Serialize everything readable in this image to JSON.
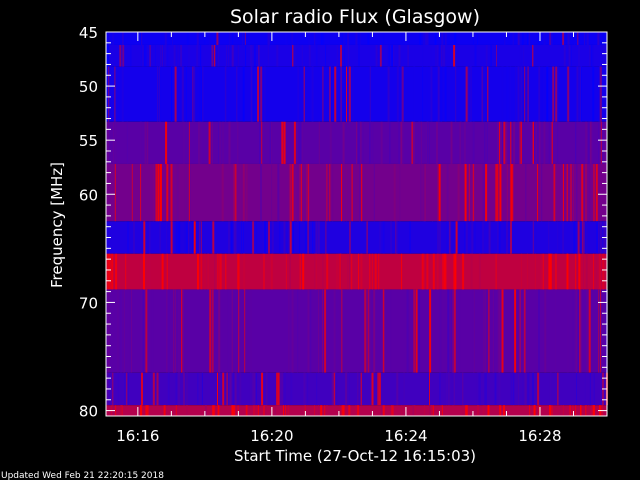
{
  "chart_data": {
    "type": "heatmap",
    "title": "Solar radio Flux (Glasgow)",
    "xlabel": "Start Time (27-Oct-12 16:15:03)",
    "ylabel": "Frequency [MHz]",
    "x_unit": "minutes past 16:00 UTC",
    "x_range": [
      15.05,
      30.0
    ],
    "y_range": [
      45,
      80.5
    ],
    "y_reversed": true,
    "x_ticks": [
      {
        "value": 16,
        "label": "16:16"
      },
      {
        "value": 20,
        "label": "16:20"
      },
      {
        "value": 24,
        "label": "16:24"
      },
      {
        "value": 28,
        "label": "16:28"
      }
    ],
    "y_ticks": [
      {
        "value": 45,
        "label": "45"
      },
      {
        "value": 50,
        "label": "50"
      },
      {
        "value": 55,
        "label": "55"
      },
      {
        "value": 60,
        "label": "60"
      },
      {
        "value": 70,
        "label": "70"
      },
      {
        "value": 80,
        "label": "80"
      }
    ],
    "bands": [
      {
        "f_from": 45.0,
        "f_to": 46.2,
        "intensity": 0.05,
        "burst": 0.1
      },
      {
        "f_from": 46.2,
        "f_to": 48.2,
        "intensity": 0.1,
        "burst": 0.15
      },
      {
        "f_from": 48.2,
        "f_to": 53.3,
        "intensity": 0.08,
        "burst": 0.25
      },
      {
        "f_from": 53.3,
        "f_to": 57.2,
        "intensity": 0.35,
        "burst": 0.2
      },
      {
        "f_from": 57.2,
        "f_to": 62.5,
        "intensity": 0.45,
        "burst": 0.45
      },
      {
        "f_from": 62.5,
        "f_to": 65.5,
        "intensity": 0.12,
        "burst": 0.2
      },
      {
        "f_from": 65.5,
        "f_to": 68.8,
        "intensity": 0.75,
        "burst": 0.45
      },
      {
        "f_from": 68.8,
        "f_to": 76.5,
        "intensity": 0.35,
        "burst": 0.25
      },
      {
        "f_from": 76.5,
        "f_to": 79.5,
        "intensity": 0.25,
        "burst": 0.2
      },
      {
        "f_from": 79.5,
        "f_to": 80.5,
        "intensity": 0.7,
        "burst": 0.6
      }
    ],
    "colors": {
      "low": "#0000ff",
      "high": "#ff0000"
    }
  },
  "footer": {
    "updated": "Updated Wed Feb 21 22:20:15 2018"
  }
}
